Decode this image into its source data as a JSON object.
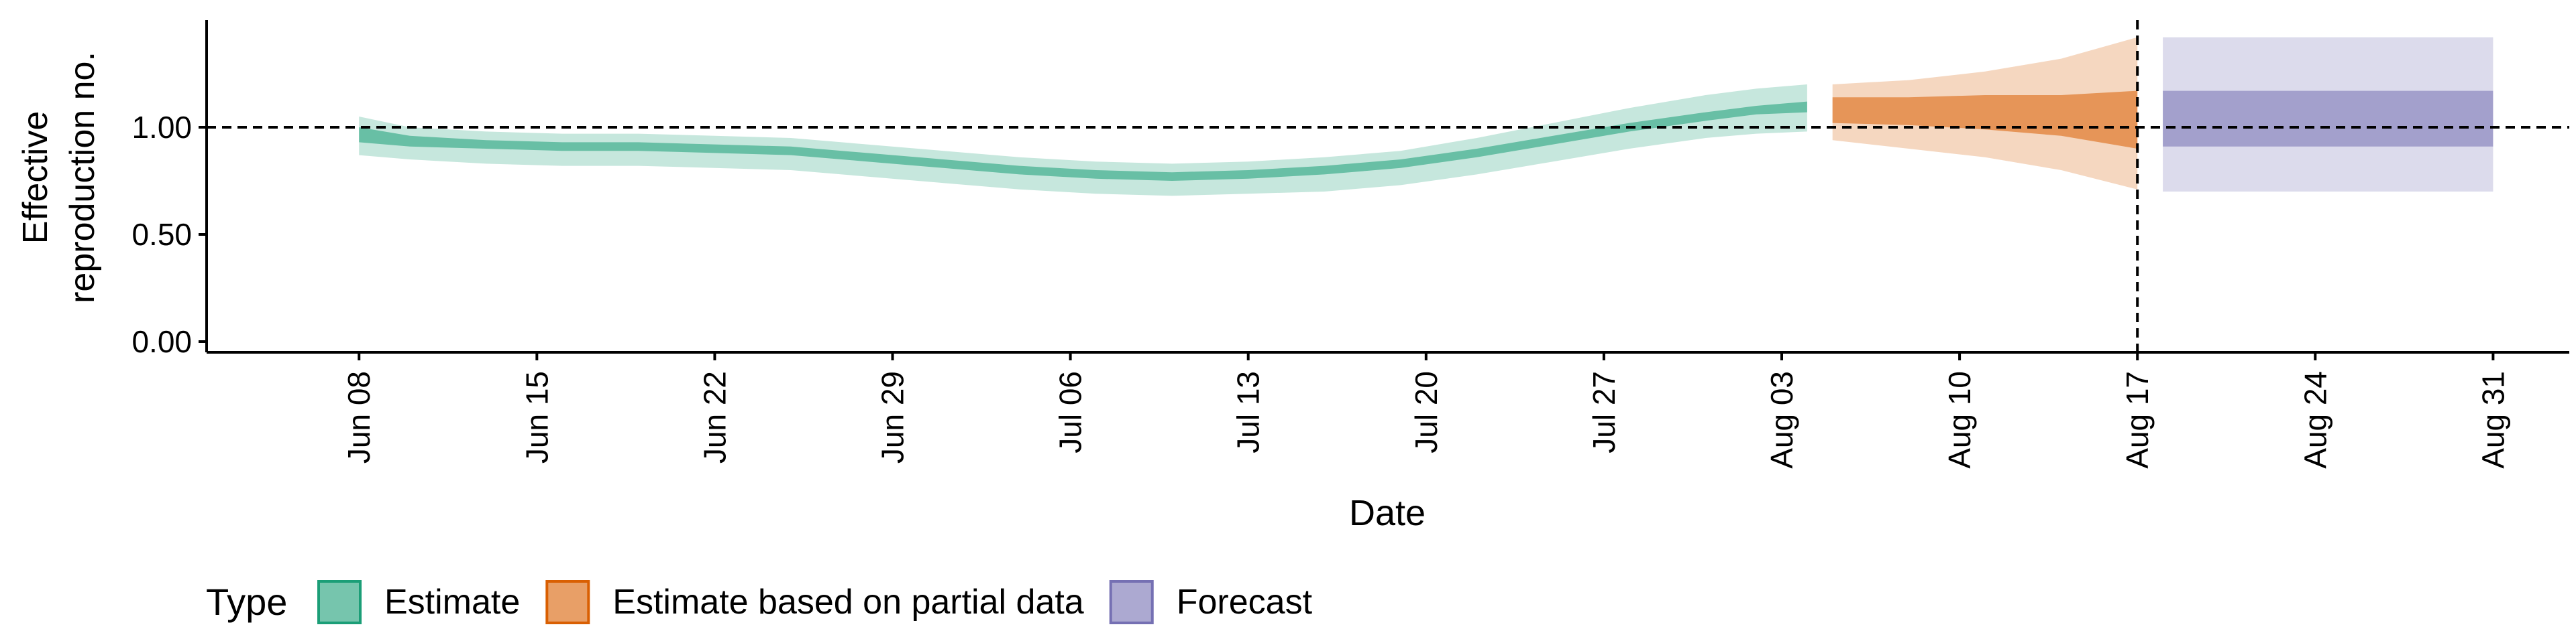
{
  "chart_data": {
    "type": "area",
    "xlabel": "Date",
    "ylabel": [
      "Effective",
      "reproduction no."
    ],
    "xlim": [
      "2020-06-02",
      "2020-09-03"
    ],
    "ylim": [
      -0.05,
      1.5
    ],
    "x_ticks": [
      {
        "date": "2020-06-08",
        "label": "Jun 08"
      },
      {
        "date": "2020-06-15",
        "label": "Jun 15"
      },
      {
        "date": "2020-06-22",
        "label": "Jun 22"
      },
      {
        "date": "2020-06-29",
        "label": "Jun 29"
      },
      {
        "date": "2020-07-06",
        "label": "Jul 06"
      },
      {
        "date": "2020-07-13",
        "label": "Jul 13"
      },
      {
        "date": "2020-07-20",
        "label": "Jul 20"
      },
      {
        "date": "2020-07-27",
        "label": "Jul 27"
      },
      {
        "date": "2020-08-03",
        "label": "Aug 03"
      },
      {
        "date": "2020-08-10",
        "label": "Aug 10"
      },
      {
        "date": "2020-08-17",
        "label": "Aug 17"
      },
      {
        "date": "2020-08-24",
        "label": "Aug 24"
      },
      {
        "date": "2020-08-31",
        "label": "Aug 31"
      }
    ],
    "y_ticks": [
      {
        "value": 0,
        "label": "0.00"
      },
      {
        "value": 0.5,
        "label": "0.50"
      },
      {
        "value": 1,
        "label": "1.00"
      }
    ],
    "reference_hline": 1.0,
    "reference_vline": "2020-08-17",
    "grid": false,
    "legend_title": "Type",
    "legend_position": "bottom-left",
    "series": [
      {
        "name": "Estimate",
        "color": "#1b9e77",
        "dates": [
          "2020-06-08",
          "2020-06-10",
          "2020-06-13",
          "2020-06-16",
          "2020-06-19",
          "2020-06-22",
          "2020-06-25",
          "2020-06-28",
          "2020-07-01",
          "2020-07-04",
          "2020-07-07",
          "2020-07-10",
          "2020-07-13",
          "2020-07-16",
          "2020-07-19",
          "2020-07-22",
          "2020-07-25",
          "2020-07-28",
          "2020-07-31",
          "2020-08-02",
          "2020-08-04"
        ],
        "lower_outer": [
          0.87,
          0.85,
          0.83,
          0.82,
          0.82,
          0.81,
          0.8,
          0.77,
          0.74,
          0.71,
          0.69,
          0.68,
          0.69,
          0.7,
          0.73,
          0.78,
          0.84,
          0.9,
          0.95,
          0.97,
          0.98
        ],
        "upper_outer": [
          1.05,
          1.0,
          0.98,
          0.97,
          0.97,
          0.96,
          0.95,
          0.92,
          0.89,
          0.86,
          0.84,
          0.83,
          0.84,
          0.86,
          0.89,
          0.95,
          1.02,
          1.09,
          1.15,
          1.18,
          1.2
        ],
        "lower_inner": [
          0.93,
          0.91,
          0.9,
          0.89,
          0.89,
          0.88,
          0.87,
          0.84,
          0.81,
          0.78,
          0.76,
          0.75,
          0.76,
          0.78,
          0.81,
          0.86,
          0.92,
          0.98,
          1.03,
          1.06,
          1.07
        ],
        "upper_inner": [
          1.0,
          0.96,
          0.94,
          0.93,
          0.93,
          0.92,
          0.91,
          0.88,
          0.85,
          0.82,
          0.8,
          0.79,
          0.8,
          0.82,
          0.85,
          0.9,
          0.96,
          1.02,
          1.07,
          1.1,
          1.12
        ]
      },
      {
        "name": "Estimate based on partial data",
        "color": "#d95f02",
        "dates": [
          "2020-08-05",
          "2020-08-08",
          "2020-08-11",
          "2020-08-14",
          "2020-08-17"
        ],
        "lower_outer": [
          0.94,
          0.9,
          0.86,
          0.8,
          0.71
        ],
        "upper_outer": [
          1.2,
          1.22,
          1.26,
          1.32,
          1.42
        ],
        "lower_inner": [
          1.02,
          1.01,
          0.99,
          0.96,
          0.9
        ],
        "upper_inner": [
          1.14,
          1.14,
          1.15,
          1.15,
          1.17
        ]
      },
      {
        "name": "Forecast",
        "color": "#7570b3",
        "dates": [
          "2020-08-18",
          "2020-08-31"
        ],
        "lower_outer": [
          0.7,
          0.7
        ],
        "upper_outer": [
          1.42,
          1.42
        ],
        "lower_inner": [
          0.91,
          0.91
        ],
        "upper_inner": [
          1.17,
          1.17
        ]
      }
    ]
  }
}
